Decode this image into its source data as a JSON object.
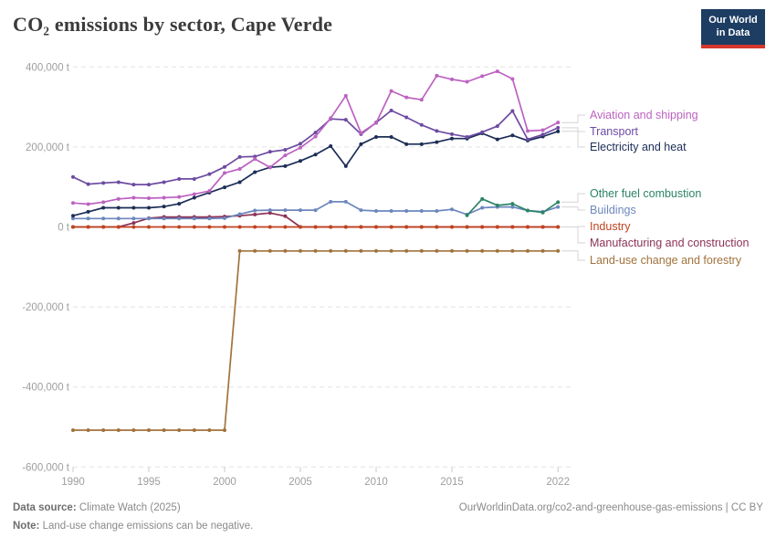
{
  "header": {
    "title": "CO₂ emissions by sector, Cape Verde",
    "logo_text": "Our World in Data"
  },
  "footer": {
    "data_source_label": "Data source:",
    "data_source_value": " Climate Watch (2025)",
    "note_label": "Note:",
    "note_value": " Land-use change emissions can be negative.",
    "citation": "OurWorldinData.org/co2-and-greenhouse-gas-emissions | CC BY"
  },
  "chart_data": {
    "type": "line",
    "title": "CO₂ emissions by sector, Cape Verde",
    "unit": "t",
    "grid": "dashed-horizontal",
    "legend_position": "right",
    "xlim": [
      1990,
      2022
    ],
    "ylim": [
      -600000,
      400000
    ],
    "x": [
      1990,
      1991,
      1992,
      1993,
      1994,
      1995,
      1996,
      1997,
      1998,
      1999,
      2000,
      2001,
      2002,
      2003,
      2004,
      2005,
      2006,
      2007,
      2008,
      2009,
      2010,
      2011,
      2012,
      2013,
      2014,
      2015,
      2016,
      2017,
      2018,
      2019,
      2020,
      2021,
      2022
    ],
    "x_ticks": [
      {
        "value": 1990,
        "label": "1990"
      },
      {
        "value": 1995,
        "label": "1995"
      },
      {
        "value": 2000,
        "label": "2000"
      },
      {
        "value": 2005,
        "label": "2005"
      },
      {
        "value": 2010,
        "label": "2010"
      },
      {
        "value": 2015,
        "label": "2015"
      },
      {
        "value": 2022,
        "label": "2022"
      }
    ],
    "y_ticks": [
      {
        "value": 400000,
        "label": "400,000 t"
      },
      {
        "value": 200000,
        "label": "200,000 t"
      },
      {
        "value": 0,
        "label": "0 t"
      },
      {
        "value": -200000,
        "label": "-200,000 t"
      },
      {
        "value": -400000,
        "label": "-400,000 t"
      },
      {
        "value": -600000,
        "label": "-600,000 t"
      }
    ],
    "series": [
      {
        "name": "Aviation and shipping",
        "color": "#bc62c1",
        "label_y": 126,
        "values": [
          60000,
          57000,
          62000,
          70000,
          73000,
          72000,
          73000,
          75000,
          82000,
          90000,
          135000,
          145000,
          170000,
          149000,
          179000,
          198000,
          226000,
          272000,
          328000,
          235000,
          260000,
          340000,
          324000,
          318000,
          378000,
          369000,
          363000,
          377000,
          389000,
          370000,
          240000,
          242000,
          261000
        ]
      },
      {
        "name": "Transport",
        "color": "#6d4ba2",
        "label_y": 144,
        "values": [
          125000,
          107000,
          110000,
          112000,
          106000,
          106000,
          112000,
          120000,
          120000,
          132000,
          150000,
          175000,
          176000,
          188000,
          193000,
          208000,
          236000,
          270000,
          268000,
          232000,
          261000,
          291000,
          274000,
          255000,
          240000,
          232000,
          225000,
          237000,
          252000,
          290000,
          219000,
          231000,
          248000
        ]
      },
      {
        "name": "Electricity and heat",
        "color": "#1c2d56",
        "label_y": 161,
        "values": [
          28000,
          38000,
          48000,
          48000,
          48000,
          48000,
          51000,
          58000,
          73000,
          86000,
          99000,
          112000,
          137000,
          149000,
          152000,
          165000,
          181000,
          202000,
          152000,
          207000,
          225000,
          225000,
          207000,
          207000,
          212000,
          221000,
          221000,
          234000,
          219000,
          229000,
          216000,
          226000,
          239000
        ]
      },
      {
        "name": "Other fuel combustion",
        "color": "#2c8465",
        "label_y": 212,
        "values": [
          null,
          null,
          null,
          null,
          null,
          null,
          null,
          null,
          null,
          null,
          null,
          null,
          null,
          null,
          null,
          null,
          null,
          null,
          null,
          null,
          null,
          null,
          null,
          null,
          null,
          null,
          29000,
          70000,
          54000,
          58000,
          41000,
          36000,
          62000
        ]
      },
      {
        "name": "Buildings",
        "color": "#6d87bd",
        "label_y": 230,
        "values": [
          21000,
          21000,
          21000,
          21000,
          21000,
          21000,
          21000,
          21000,
          21000,
          21000,
          22000,
          32000,
          41000,
          42000,
          42000,
          42000,
          42000,
          63000,
          63000,
          42000,
          40000,
          40000,
          40000,
          40000,
          40000,
          44000,
          31000,
          48000,
          50000,
          50000,
          41000,
          38000,
          50000
        ]
      },
      {
        "name": "Industry",
        "color": "#c0431f",
        "label_y": 248,
        "values": [
          0,
          0,
          0,
          0,
          0,
          0,
          0,
          0,
          0,
          0,
          0,
          0,
          0,
          0,
          0,
          0,
          0,
          0,
          0,
          0,
          0,
          0,
          0,
          0,
          0,
          0,
          0,
          0,
          0,
          0,
          0,
          0,
          0
        ]
      },
      {
        "name": "Manufacturing and construction",
        "color": "#8c3257",
        "label_y": 266,
        "values": [
          0,
          0,
          0,
          0,
          10000,
          22000,
          25000,
          25000,
          25000,
          25000,
          26000,
          28000,
          31000,
          35000,
          27000,
          0,
          0,
          0,
          0,
          0,
          0,
          0,
          0,
          0,
          0,
          0,
          0,
          0,
          0,
          0,
          0,
          0,
          0
        ]
      },
      {
        "name": "Land-use change and forestry",
        "color": "#a1733c",
        "label_y": 285,
        "values": [
          -508000,
          -508000,
          -508000,
          -508000,
          -508000,
          -508000,
          -508000,
          -508000,
          -508000,
          -508000,
          -508000,
          -60000,
          -60000,
          -60000,
          -60000,
          -60000,
          -60000,
          -60000,
          -60000,
          -60000,
          -60000,
          -60000,
          -60000,
          -60000,
          -60000,
          -60000,
          -60000,
          -60000,
          -60000,
          -60000,
          -60000,
          -60000,
          -60000
        ]
      }
    ]
  }
}
